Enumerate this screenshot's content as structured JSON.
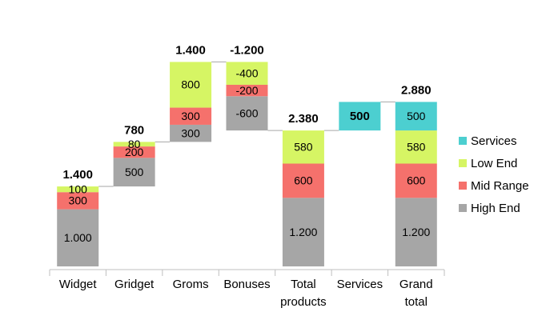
{
  "chart_data": {
    "type": "waterfall",
    "categories": [
      "Widget",
      "Gridget",
      "Groms",
      "Bonuses",
      "Total products",
      "Services",
      "Grand total"
    ],
    "series": [
      {
        "name": "High End",
        "color": "#a6a6a6",
        "values": [
          1000,
          500,
          300,
          -600,
          1200,
          null,
          1200
        ],
        "value_labels": [
          "1.000",
          "500",
          "300",
          "-600",
          "1.200",
          null,
          "1.200"
        ]
      },
      {
        "name": "Mid Range",
        "color": "#f5716c",
        "values": [
          300,
          200,
          300,
          -200,
          600,
          null,
          600
        ]
      },
      {
        "name": "Low End",
        "color": "#d6f564",
        "values": [
          100,
          80,
          800,
          -400,
          580,
          null,
          580
        ]
      },
      {
        "name": "Services",
        "color": "#4ccfd0",
        "values": [
          null,
          null,
          null,
          null,
          null,
          500,
          500
        ]
      }
    ],
    "totals": {
      "values": [
        1400,
        780,
        1400,
        -1200,
        2380,
        null,
        2880
      ],
      "value_labels": [
        "1.400",
        "780",
        "1.400",
        "-1.200",
        "2.380",
        null,
        "2.880"
      ]
    },
    "ylim": [
      0,
      3600
    ]
  }
}
